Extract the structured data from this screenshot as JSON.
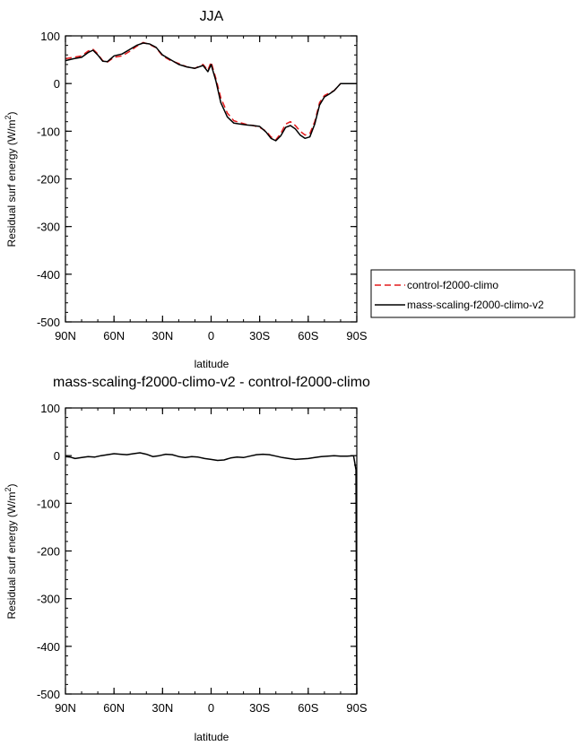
{
  "chart_data": [
    {
      "type": "line",
      "title": "JJA",
      "xlabel": "latitude",
      "ylabel": "Residual surf energy (W/m",
      "ylabel_sup": "2",
      "ylabel_close": ")",
      "xlim": [
        90,
        -90
      ],
      "ylim": [
        -500,
        100
      ],
      "xticks": [
        90,
        60,
        30,
        0,
        -30,
        -60,
        -90
      ],
      "xtick_labels": [
        "90N",
        "60N",
        "30N",
        "0",
        "30S",
        "60S",
        "90S"
      ],
      "yticks": [
        100,
        0,
        -100,
        -200,
        -300,
        -400,
        -500
      ],
      "ytick_labels": [
        "100",
        "0",
        "-100",
        "-200",
        "-300",
        "-400",
        "-500"
      ],
      "legend_position": "outside-right",
      "series": [
        {
          "name": "control-f2000-climo",
          "color": "#e31a1c",
          "dash": "dashed",
          "x": [
            90,
            85,
            80,
            76,
            73,
            70,
            67,
            64,
            60,
            55,
            50,
            46,
            42,
            38,
            34,
            30,
            25,
            20,
            15,
            10,
            5,
            2,
            0,
            -3,
            -6,
            -10,
            -14,
            -18,
            -22,
            -26,
            -30,
            -34,
            -37,
            -40,
            -43,
            -46,
            -49,
            -52,
            -55,
            -58,
            -61,
            -64,
            -67,
            -70,
            -73,
            -76,
            -80,
            -83,
            -86,
            -90
          ],
          "y": [
            52,
            55,
            58,
            68,
            72,
            62,
            48,
            45,
            55,
            58,
            68,
            78,
            86,
            82,
            75,
            58,
            48,
            42,
            35,
            32,
            40,
            28,
            45,
            10,
            -30,
            -62,
            -78,
            -82,
            -86,
            -88,
            -92,
            -100,
            -112,
            -118,
            -105,
            -85,
            -80,
            -88,
            -100,
            -108,
            -105,
            -80,
            -40,
            -25,
            -20,
            -15,
            0,
            0,
            0,
            0
          ]
        },
        {
          "name": "mass-scaling-f2000-climo-v2",
          "color": "#000000",
          "dash": "solid",
          "x": [
            90,
            85,
            80,
            76,
            73,
            70,
            67,
            64,
            60,
            55,
            50,
            46,
            42,
            38,
            34,
            30,
            25,
            20,
            15,
            10,
            5,
            2,
            0,
            -3,
            -6,
            -10,
            -14,
            -18,
            -22,
            -26,
            -30,
            -34,
            -37,
            -40,
            -43,
            -46,
            -49,
            -52,
            -55,
            -58,
            -61,
            -64,
            -67,
            -70,
            -73,
            -76,
            -80,
            -83,
            -86,
            -90
          ],
          "y": [
            48,
            52,
            55,
            65,
            70,
            60,
            47,
            46,
            58,
            62,
            72,
            80,
            85,
            83,
            76,
            60,
            50,
            40,
            35,
            32,
            38,
            25,
            40,
            5,
            -40,
            -70,
            -83,
            -85,
            -87,
            -88,
            -90,
            -102,
            -115,
            -120,
            -110,
            -92,
            -88,
            -95,
            -108,
            -115,
            -112,
            -85,
            -45,
            -28,
            -22,
            -15,
            0,
            0,
            0,
            0
          ]
        }
      ]
    },
    {
      "type": "line",
      "title": "mass-scaling-f2000-climo-v2 - control-f2000-climo",
      "xlabel": "latitude",
      "ylabel": "Residual surf energy (W/m",
      "ylabel_sup": "2",
      "ylabel_close": ")",
      "xlim": [
        90,
        -90
      ],
      "ylim": [
        -500,
        100
      ],
      "xticks": [
        90,
        60,
        30,
        0,
        -30,
        -60,
        -90
      ],
      "xtick_labels": [
        "90N",
        "60N",
        "30N",
        "0",
        "30S",
        "60S",
        "90S"
      ],
      "yticks": [
        100,
        0,
        -100,
        -200,
        -300,
        -400,
        -500
      ],
      "ytick_labels": [
        "100",
        "0",
        "-100",
        "-200",
        "-300",
        "-400",
        "-500"
      ],
      "series": [
        {
          "color": "#000000",
          "dash": "solid",
          "x": [
            90,
            87,
            84,
            80,
            76,
            72,
            68,
            64,
            60,
            56,
            52,
            48,
            44,
            40,
            36,
            32,
            28,
            24,
            20,
            16,
            12,
            8,
            4,
            0,
            -4,
            -8,
            -12,
            -16,
            -20,
            -24,
            -28,
            -32,
            -36,
            -40,
            -44,
            -48,
            -52,
            -56,
            -60,
            -64,
            -68,
            -72,
            -76,
            -80,
            -84,
            -88,
            -89.5,
            -90
          ],
          "y": [
            -2,
            -3,
            -6,
            -4,
            -2,
            -3,
            0,
            2,
            4,
            3,
            2,
            4,
            6,
            3,
            -2,
            0,
            3,
            2,
            -2,
            -4,
            -2,
            -3,
            -6,
            -8,
            -10,
            -9,
            -5,
            -3,
            -4,
            -1,
            2,
            3,
            2,
            -1,
            -4,
            -6,
            -8,
            -7,
            -6,
            -4,
            -2,
            -1,
            0,
            -1,
            -1,
            0,
            -30,
            -500
          ]
        }
      ]
    }
  ]
}
